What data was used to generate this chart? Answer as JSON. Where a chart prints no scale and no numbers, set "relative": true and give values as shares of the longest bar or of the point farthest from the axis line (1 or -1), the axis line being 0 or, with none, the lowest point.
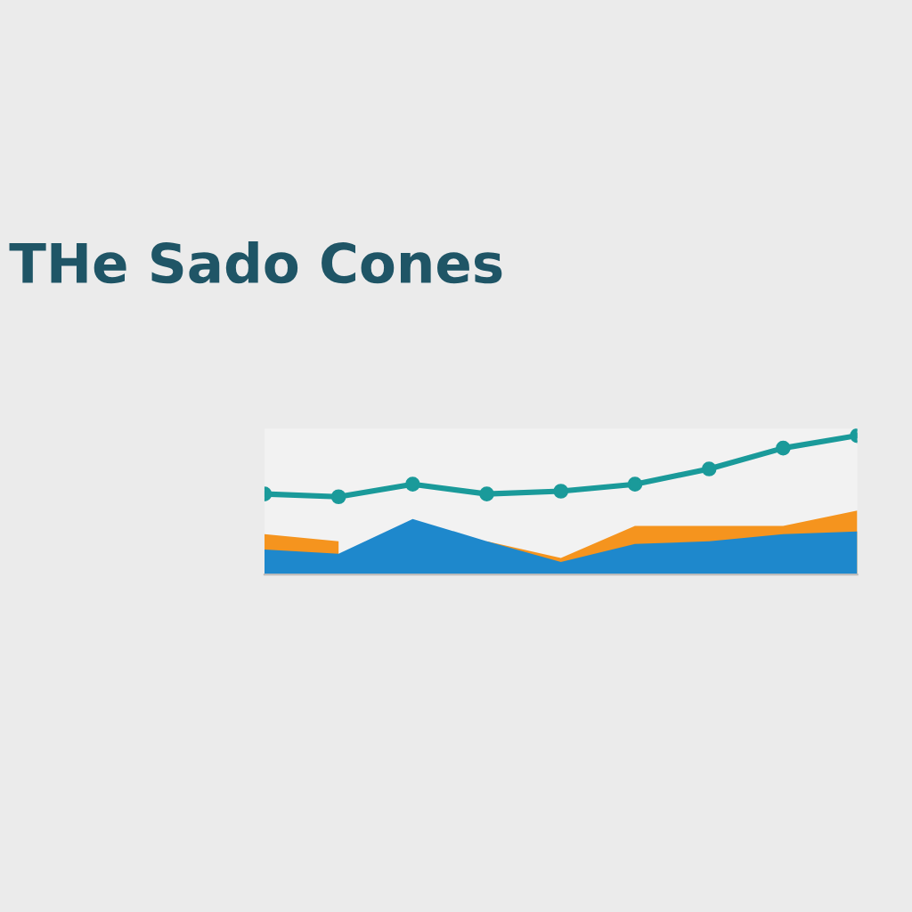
{
  "chart_data": {
    "type": "area",
    "title": "THe Sado Cones",
    "relative": true,
    "categories": [
      null,
      null,
      null,
      null,
      null,
      null,
      null,
      null,
      null
    ],
    "series": [
      {
        "color": "#f5941e",
        "values": [
          0.29,
          0.24,
          null,
          0.24,
          0.12,
          0.35,
          0.35,
          0.35,
          0.46
        ]
      },
      {
        "type": "area",
        "color": "#1e88cc",
        "values": [
          0.18,
          0.15,
          0.4,
          0.24,
          0.09,
          0.22,
          0.24,
          0.29,
          0.31
        ]
      },
      {
        "type": "line",
        "color": "#1a9a9a",
        "marker": "circle",
        "values": [
          0.58,
          0.56,
          0.65,
          0.58,
          0.6,
          0.65,
          0.76,
          0.91,
          1.0
        ]
      }
    ],
    "grid": false,
    "legend": false
  }
}
